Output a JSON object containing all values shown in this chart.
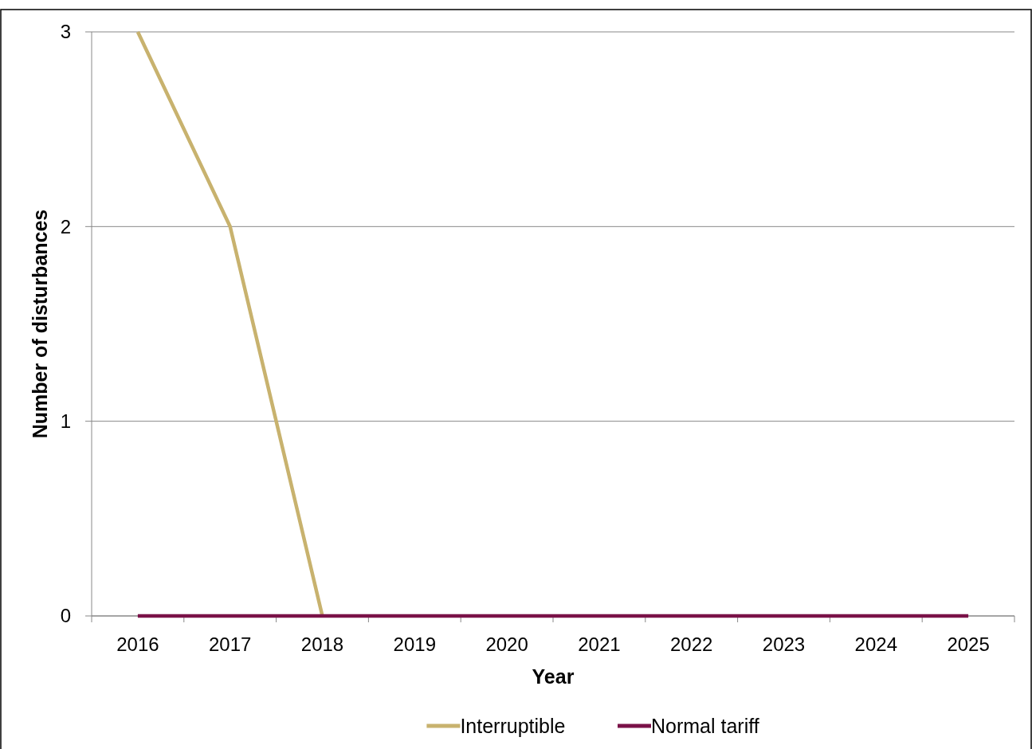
{
  "chart_data": {
    "type": "line",
    "xlabel": "Year",
    "ylabel": "Number of disturbances",
    "categories": [
      "2016",
      "2017",
      "2018",
      "2019",
      "2020",
      "2021",
      "2022",
      "2023",
      "2024",
      "2025"
    ],
    "series": [
      {
        "name": "Interruptible",
        "color": "#c8b26e",
        "values": [
          3,
          2,
          0,
          null,
          null,
          null,
          null,
          null,
          null,
          null
        ]
      },
      {
        "name": "Normal tariff",
        "color": "#7a1248",
        "values": [
          0,
          0,
          0,
          0,
          0,
          0,
          0,
          0,
          0,
          0
        ]
      }
    ],
    "ylim": [
      0,
      3
    ],
    "yticks": [
      0,
      1,
      2,
      3
    ],
    "grid": "y",
    "legend": "bottom",
    "marker": "none",
    "line_style": "solid"
  }
}
